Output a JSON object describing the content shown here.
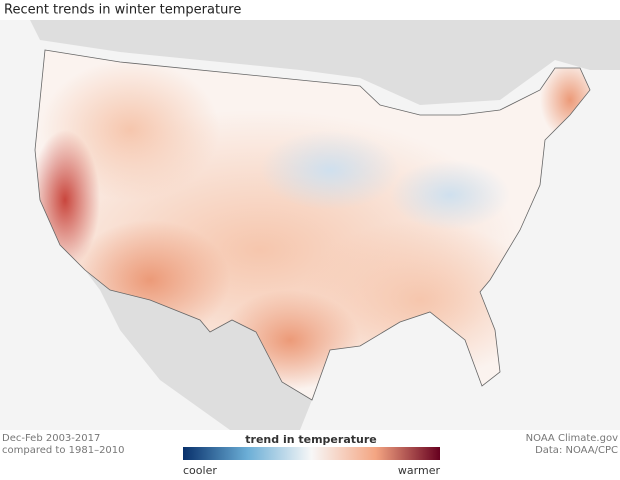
{
  "header": {
    "title": "Recent trends in winter temperature"
  },
  "footer": {
    "left": [
      "Dec-Feb 2003-2017",
      "compared to 1981–2010"
    ],
    "right": [
      "NOAA Climate.gov",
      "Data: NOAA/CPC"
    ]
  },
  "legend": {
    "title": "trend in temperature",
    "low_label": "cooler",
    "high_label": "warmer"
  }
}
